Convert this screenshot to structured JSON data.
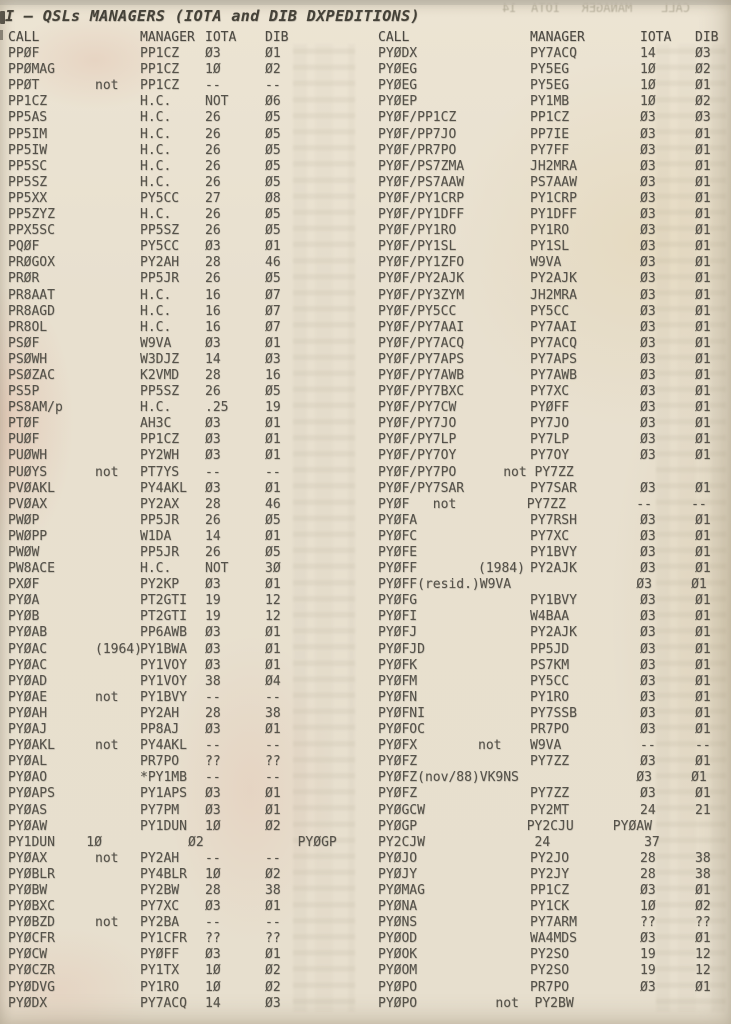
{
  "document": {
    "title": "I – QSLs MANAGERS (IOTA and DIB DXPEDITIONS)",
    "columns": {
      "call": "CALL",
      "manager": "MANAGER",
      "iota": "IOTA",
      "dib": "DIB"
    },
    "ghost_header_bleed": "CALL    MANAGER   IOTA  14",
    "colors": {
      "paper": "#e9e1d0",
      "ink": "#55524a",
      "title_ink": "#454239",
      "stain_pink": "#dba08c",
      "stain_yellow": "#d6bc80"
    },
    "left_rows": [
      {
        "c": "PPØF",
        "m": "PP1CZ",
        "i": "Ø3",
        "d": "Ø1"
      },
      {
        "c": "PPØMAG",
        "m": "PP1CZ",
        "i": "1Ø",
        "d": "Ø2"
      },
      {
        "c": "PPØT",
        "n": "not",
        "m": "PP1CZ",
        "i": "--",
        "d": "--"
      },
      {
        "c": "PP1CZ",
        "m": "H.C.",
        "i": "NOT",
        "d": "Ø6"
      },
      {
        "c": "PP5AS",
        "m": "H.C.",
        "i": "26",
        "d": "Ø5"
      },
      {
        "c": "PP5IM",
        "m": "H.C.",
        "i": "26",
        "d": "Ø5"
      },
      {
        "c": "PP5IW",
        "m": "H.C.",
        "i": "26",
        "d": "Ø5"
      },
      {
        "c": "PP5SC",
        "m": "H.C.",
        "i": "26",
        "d": "Ø5"
      },
      {
        "c": "PP5SZ",
        "m": "H.C.",
        "i": "26",
        "d": "Ø5"
      },
      {
        "c": "PP5XX",
        "m": "PY5CC",
        "i": "27",
        "d": "Ø8"
      },
      {
        "c": "PP5ZYZ",
        "m": "H.C.",
        "i": "26",
        "d": "Ø5"
      },
      {
        "c": "PPX5SC",
        "m": "PP5SZ",
        "i": "26",
        "d": "Ø5"
      },
      {
        "c": "PQØF",
        "m": "PY5CC",
        "i": "Ø3",
        "d": "Ø1"
      },
      {
        "c": "PRØGOX",
        "m": "PY2AH",
        "i": "28",
        "d": "46"
      },
      {
        "c": "PRØR",
        "m": "PP5JR",
        "i": "26",
        "d": "Ø5"
      },
      {
        "c": "PR8AAT",
        "m": "H.C.",
        "i": "16",
        "d": "Ø7"
      },
      {
        "c": "PR8AGD",
        "m": "H.C.",
        "i": "16",
        "d": "Ø7"
      },
      {
        "c": "PR8OL",
        "m": "H.C.",
        "i": "16",
        "d": "Ø7"
      },
      {
        "c": "PSØF",
        "m": "W9VA",
        "i": "Ø3",
        "d": "Ø1"
      },
      {
        "c": "PSØWH",
        "m": "W3DJZ",
        "i": "14",
        "d": "Ø3"
      },
      {
        "c": "PSØZAC",
        "m": "K2VMD",
        "i": "28",
        "d": "16"
      },
      {
        "c": "PS5P",
        "m": "PP5SZ",
        "i": "26",
        "d": "Ø5"
      },
      {
        "c": "PS8AM/p",
        "m": "H.C.",
        "i": ".25",
        "d": "19"
      },
      {
        "c": "PTØF",
        "m": "AH3C",
        "i": "Ø3",
        "d": "Ø1"
      },
      {
        "c": "PUØF",
        "m": "PP1CZ",
        "i": "Ø3",
        "d": "Ø1"
      },
      {
        "c": "PUØWH",
        "m": "PY2WH",
        "i": "Ø3",
        "d": "Ø1"
      },
      {
        "c": "PUØYS",
        "n": "not",
        "m": "PT7YS",
        "i": "--",
        "d": "--"
      },
      {
        "c": "PVØAKL",
        "m": "PY4AKL",
        "i": "Ø3",
        "d": "Ø1"
      },
      {
        "c": "PVØAX",
        "m": "PY2AX",
        "i": "28",
        "d": "46"
      },
      {
        "c": "PWØP",
        "m": "PP5JR",
        "i": "26",
        "d": "Ø5"
      },
      {
        "c": "PWØPP",
        "m": "W1DA",
        "i": "14",
        "d": "Ø1"
      },
      {
        "c": "PWØW",
        "m": "PP5JR",
        "i": "26",
        "d": "Ø5"
      },
      {
        "c": "PW8ACE",
        "m": "H.C.",
        "i": "NOT",
        "d": "3Ø"
      },
      {
        "c": "PXØF",
        "m": "PY2KP",
        "i": "Ø3",
        "d": "Ø1"
      },
      {
        "c": "PYØA",
        "m": "PT2GTI",
        "i": "19",
        "d": "12"
      },
      {
        "c": "PYØB",
        "m": "PT2GTI",
        "i": "19",
        "d": "12"
      },
      {
        "c": "PYØAB",
        "m": "PP6AWB",
        "i": "Ø3",
        "d": "Ø1"
      },
      {
        "c": "PYØAC",
        "n": "(1964)",
        "m": "PY1BWA",
        "i": "Ø3",
        "d": "Ø1"
      },
      {
        "c": "PYØAC",
        "m": "PY1VOY",
        "i": "Ø3",
        "d": "Ø1"
      },
      {
        "c": "PYØAD",
        "m": "PY1VOY",
        "i": "38",
        "d": "Ø4"
      },
      {
        "c": "PYØAE",
        "n": "not",
        "m": "PY1BVY",
        "i": "--",
        "d": "--"
      },
      {
        "c": "PYØAH",
        "m": "PY2AH",
        "i": "28",
        "d": "38"
      },
      {
        "c": "PYØAJ",
        "m": "PP8AJ",
        "i": "Ø3",
        "d": "Ø1"
      },
      {
        "c": "PYØAKL",
        "n": "not",
        "m": "PY4AKL",
        "i": "--",
        "d": "--"
      },
      {
        "c": "PYØAL",
        "m": "PR7PO",
        "i": "??",
        "d": "??"
      },
      {
        "c": "PYØAO",
        "m": "*PY1MB",
        "i": "--",
        "d": "--"
      },
      {
        "c": "PYØAPS",
        "m": "PY1APS",
        "i": "Ø3",
        "d": "Ø1"
      },
      {
        "c": "PYØAS",
        "m": "PY7PM",
        "i": "Ø3",
        "d": "Ø1"
      },
      {
        "c": "PYØAW",
        "m": "PY1DUN",
        "i": "1Ø",
        "d": "Ø2"
      },
      {
        "raw": "PY1DUN    1Ø           Ø2            PYØGP"
      },
      {
        "c": "PYØAX",
        "n": "not",
        "m": "PY2AH",
        "i": "--",
        "d": "--"
      },
      {
        "c": "PYØBLR",
        "m": "PY4BLR",
        "i": "1Ø",
        "d": "Ø2"
      },
      {
        "c": "PYØBW",
        "m": "PY2BW",
        "i": "28",
        "d": "38"
      },
      {
        "c": "PYØBXC",
        "m": "PY7XC",
        "i": "Ø3",
        "d": "Ø1"
      },
      {
        "c": "PYØBZD",
        "n": "not",
        "m": "PY2BA",
        "i": "--",
        "d": "--"
      },
      {
        "c": "PYØCFR",
        "m": "PY1CFR",
        "i": "??",
        "d": "??"
      },
      {
        "c": "PYØCW",
        "m": "PYØFF",
        "i": "Ø3",
        "d": "Ø1"
      },
      {
        "c": "PYØCZR",
        "m": "PY1TX",
        "i": "1Ø",
        "d": "Ø2"
      },
      {
        "c": "PYØDVG",
        "m": "PY1RO",
        "i": "1Ø",
        "d": "Ø2"
      },
      {
        "c": "PYØDX",
        "m": "PY7ACQ",
        "i": "14",
        "d": "Ø3"
      }
    ],
    "right_rows": [
      {
        "c": "PYØDX",
        "m": "PY7ACQ",
        "i": "14",
        "d": "Ø3"
      },
      {
        "c": "PYØEG",
        "m": "PY5EG",
        "i": "1Ø",
        "d": "Ø2"
      },
      {
        "c": "PYØEG",
        "m": "PY5EG",
        "i": "1Ø",
        "d": "Ø1"
      },
      {
        "c": "PYØEP",
        "m": "PY1MB",
        "i": "1Ø",
        "d": "Ø2"
      },
      {
        "c": "PYØF/PP1CZ",
        "m": "PP1CZ",
        "i": "Ø3",
        "d": "Ø3"
      },
      {
        "c": "PYØF/PP7JO",
        "m": "PP7IE",
        "i": "Ø3",
        "d": "Ø1"
      },
      {
        "c": "PYØF/PR7PO",
        "m": "PY7FF",
        "i": "Ø3",
        "d": "Ø1"
      },
      {
        "c": "PYØF/PS7ZMA",
        "m": "JH2MRA",
        "i": "Ø3",
        "d": "Ø1"
      },
      {
        "c": "PYØF/PS7AAW",
        "m": "PS7AAW",
        "i": "Ø3",
        "d": "Ø1"
      },
      {
        "c": "PYØF/PY1CRP",
        "m": "PY1CRP",
        "i": "Ø3",
        "d": "Ø1"
      },
      {
        "c": "PYØF/PY1DFF",
        "m": "PY1DFF",
        "i": "Ø3",
        "d": "Ø1"
      },
      {
        "c": "PYØF/PY1RO",
        "m": "PY1RO",
        "i": "Ø3",
        "d": "Ø1"
      },
      {
        "c": "PYØF/PY1SL",
        "m": "PY1SL",
        "i": "Ø3",
        "d": "Ø1"
      },
      {
        "c": "PYØF/PY1ZFO",
        "m": "W9VA",
        "i": "Ø3",
        "d": "Ø1"
      },
      {
        "c": "PYØF/PY2AJK",
        "m": "PY2AJK",
        "i": "Ø3",
        "d": "Ø1"
      },
      {
        "c": "PYØF/PY3ZYM",
        "m": "JH2MRA",
        "i": "Ø3",
        "d": "Ø1"
      },
      {
        "c": "PYØF/PY5CC",
        "m": "PY5CC",
        "i": "Ø3",
        "d": "Ø1"
      },
      {
        "c": "PYØF/PY7AAI",
        "m": "PY7AAI",
        "i": "Ø3",
        "d": "Ø1"
      },
      {
        "c": "PYØF/PY7ACQ",
        "m": "PY7ACQ",
        "i": "Ø3",
        "d": "Ø1"
      },
      {
        "c": "PYØF/PY7APS",
        "m": "PY7APS",
        "i": "Ø3",
        "d": "Ø1"
      },
      {
        "c": "PYØF/PY7AWB",
        "m": "PY7AWB",
        "i": "Ø3",
        "d": "Ø1"
      },
      {
        "c": "PYØF/PY7BXC",
        "m": "PY7XC",
        "i": "Ø3",
        "d": "Ø1"
      },
      {
        "c": "PYØF/PY7CW",
        "m": "PYØFF",
        "i": "Ø3",
        "d": "Ø1"
      },
      {
        "c": "PYØF/PY7JO",
        "m": "PY7JO",
        "i": "Ø3",
        "d": "Ø1"
      },
      {
        "c": "PYØF/PY7LP",
        "m": "PY7LP",
        "i": "Ø3",
        "d": "Ø1"
      },
      {
        "c": "PYØF/PY7OY",
        "m": "PY7OY",
        "i": "Ø3",
        "d": "Ø1"
      },
      {
        "raw": "PYØF/PY7PO      not PY7ZZ"
      },
      {
        "c": "PYØF/PY7SAR",
        "m": "PY7SAR",
        "i": "Ø3",
        "d": "Ø1"
      },
      {
        "raw": "PYØF   not         PY7ZZ         --     --"
      },
      {
        "c": "PYØFA",
        "m": "PY7RSH",
        "i": "Ø3",
        "d": "Ø1"
      },
      {
        "c": "PYØFC",
        "m": "PY7XC",
        "i": "Ø3",
        "d": "Ø1"
      },
      {
        "c": "PYØFE",
        "m": "PY1BVY",
        "i": "Ø3",
        "d": "Ø1"
      },
      {
        "c": "PYØFF",
        "n": "(1984)",
        "m": "PY2AJK",
        "i": "Ø3",
        "d": "Ø1"
      },
      {
        "raw": "PYØFF(resid.)W9VA                Ø3     Ø1"
      },
      {
        "c": "PYØFG",
        "m": "PY1BVY",
        "i": "Ø3",
        "d": "Ø1"
      },
      {
        "c": "PYØFI",
        "m": "W4BAA",
        "i": "Ø3",
        "d": "Ø1"
      },
      {
        "c": "PYØFJ",
        "m": "PY2AJK",
        "i": "Ø3",
        "d": "Ø1"
      },
      {
        "c": "PYØFJD",
        "m": "PP5JD",
        "i": "Ø3",
        "d": "Ø1"
      },
      {
        "c": "PYØFK",
        "m": "PS7KM",
        "i": "Ø3",
        "d": "Ø1"
      },
      {
        "c": "PYØFM",
        "m": "PY5CC",
        "i": "Ø3",
        "d": "Ø1"
      },
      {
        "c": "PYØFN",
        "m": "PY1RO",
        "i": "Ø3",
        "d": "Ø1"
      },
      {
        "c": "PYØFNI",
        "m": "PY7SSB",
        "i": "Ø3",
        "d": "Ø1"
      },
      {
        "c": "PYØFOC",
        "m": "PR7PO",
        "i": "Ø3",
        "d": "Ø1"
      },
      {
        "c": "PYØFX",
        "n": "not",
        "m": "W9VA",
        "i": "--",
        "d": "--"
      },
      {
        "c": "PYØFZ",
        "m": "PY7ZZ",
        "i": "Ø3",
        "d": "Ø1"
      },
      {
        "raw": "PYØFZ(nov/88)VK9NS               Ø3     Ø1"
      },
      {
        "c": "PYØFZ",
        "m": "PY7ZZ",
        "i": "Ø3",
        "d": "Ø1"
      },
      {
        "c": "PYØGCW",
        "m": "PY2MT",
        "i": "24",
        "d": "21"
      },
      {
        "raw": "PYØGP              PY2CJU     PYØAW"
      },
      {
        "raw": "PY2CJW              24            37"
      },
      {
        "c": "PYØJO",
        "m": "PY2JO",
        "i": "28",
        "d": "38"
      },
      {
        "c": "PYØJY",
        "m": "PY2JY",
        "i": "28",
        "d": "38"
      },
      {
        "c": "PYØMAG",
        "m": "PP1CZ",
        "i": "Ø3",
        "d": "Ø1"
      },
      {
        "c": "PYØNA",
        "m": "PY1CK",
        "i": "1Ø",
        "d": "Ø2"
      },
      {
        "c": "PYØNS",
        "m": "PY7ARM",
        "i": "??",
        "d": "??"
      },
      {
        "c": "PYØOD",
        "m": "WA4MDS",
        "i": "Ø3",
        "d": "Ø1"
      },
      {
        "c": "PYØOK",
        "m": "PY2SO",
        "i": "19",
        "d": "12"
      },
      {
        "c": "PYØOM",
        "m": "PY2SO",
        "i": "19",
        "d": "12"
      },
      {
        "c": "PYØPO",
        "m": "PR7PO",
        "i": "Ø3",
        "d": "Ø1"
      },
      {
        "raw": "PYØPO          not  PY2BW"
      }
    ]
  }
}
